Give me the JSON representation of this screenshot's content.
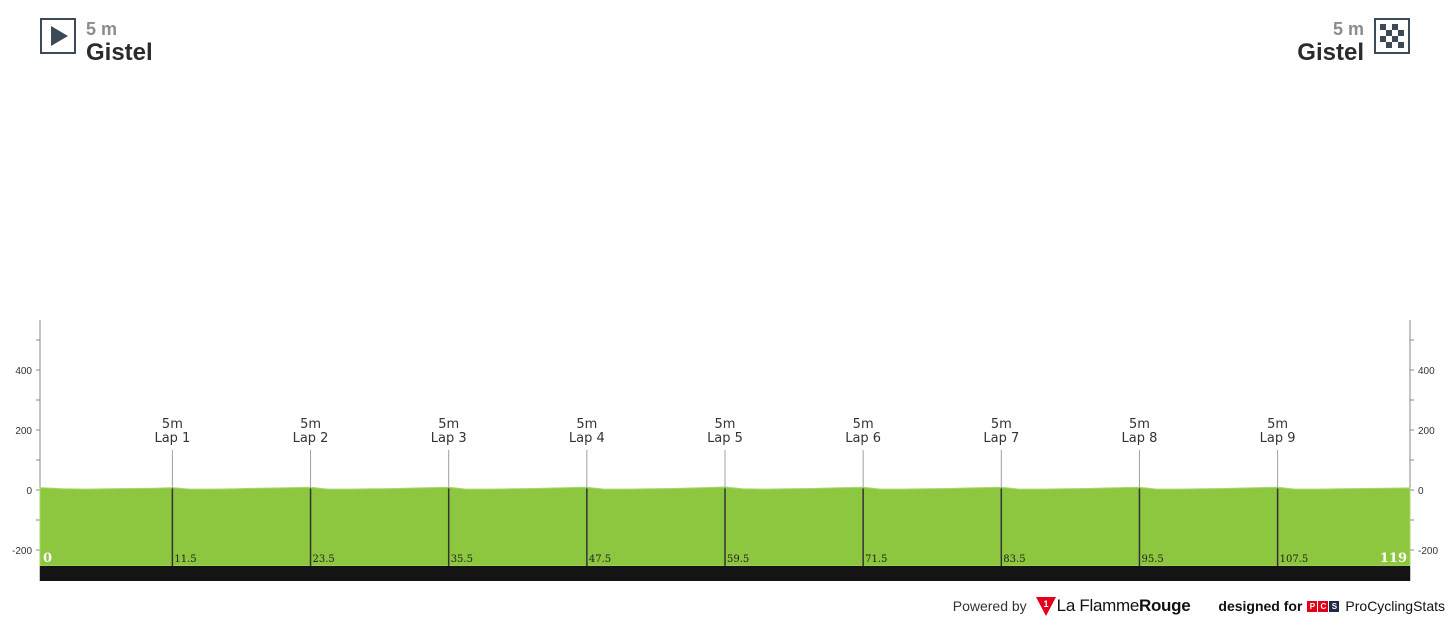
{
  "start": {
    "altitude": "5 m",
    "name": "Gistel",
    "icon": "start-flag-icon"
  },
  "finish": {
    "altitude": "5 m",
    "name": "Gistel",
    "icon": "finish-flag-icon"
  },
  "chart_data": {
    "type": "area",
    "title": "",
    "xlabel": "",
    "ylabel": "",
    "xlim": [
      0,
      119
    ],
    "ylim": [
      -250,
      560
    ],
    "y_ticks": [
      -200,
      0,
      200,
      400
    ],
    "y_tick_labels": [
      "-200",
      "0",
      "200",
      "400"
    ],
    "x_labels": [
      {
        "x": 0,
        "label": "0"
      },
      {
        "x": 11.5,
        "label": "11.5"
      },
      {
        "x": 23.5,
        "label": "23.5"
      },
      {
        "x": 35.5,
        "label": "35.5"
      },
      {
        "x": 47.5,
        "label": "47.5"
      },
      {
        "x": 59.5,
        "label": "59.5"
      },
      {
        "x": 71.5,
        "label": "71.5"
      },
      {
        "x": 83.5,
        "label": "83.5"
      },
      {
        "x": 95.5,
        "label": "95.5"
      },
      {
        "x": 107.5,
        "label": "107.5"
      },
      {
        "x": 119,
        "label": "119"
      }
    ],
    "points": [
      {
        "km": 11.5,
        "altitude": 5,
        "altitude_label": "5m",
        "name": "Lap 1"
      },
      {
        "km": 23.5,
        "altitude": 5,
        "altitude_label": "5m",
        "name": "Lap 2"
      },
      {
        "km": 35.5,
        "altitude": 5,
        "altitude_label": "5m",
        "name": "Lap 3"
      },
      {
        "km": 47.5,
        "altitude": 5,
        "altitude_label": "5m",
        "name": "Lap 4"
      },
      {
        "km": 59.5,
        "altitude": 5,
        "altitude_label": "5m",
        "name": "Lap 5"
      },
      {
        "km": 71.5,
        "altitude": 5,
        "altitude_label": "5m",
        "name": "Lap 6"
      },
      {
        "km": 83.5,
        "altitude": 5,
        "altitude_label": "5m",
        "name": "Lap 7"
      },
      {
        "km": 95.5,
        "altitude": 5,
        "altitude_label": "5m",
        "name": "Lap 8"
      },
      {
        "km": 107.5,
        "altitude": 5,
        "altitude_label": "5m",
        "name": "Lap 9"
      }
    ],
    "profile": {
      "x": [
        0,
        2,
        4,
        6,
        8,
        10,
        11.5,
        13,
        15,
        17,
        19,
        21,
        23.5,
        25,
        27,
        29,
        31,
        33,
        35.5,
        37,
        39,
        41,
        43,
        45,
        47.5,
        49,
        51,
        53,
        55,
        57,
        59.5,
        61,
        63,
        65,
        67,
        69,
        71.5,
        73,
        75,
        77,
        79,
        81,
        83.5,
        85,
        87,
        89,
        91,
        93,
        95.5,
        97,
        99,
        101,
        103,
        105,
        107.5,
        109,
        111,
        113,
        115,
        117,
        119
      ],
      "y": [
        8,
        4,
        3,
        4,
        5,
        6,
        8,
        3,
        3,
        4,
        6,
        7,
        9,
        3,
        3,
        4,
        5,
        7,
        9,
        3,
        3,
        4,
        5,
        7,
        9,
        3,
        3,
        4,
        5,
        7,
        10,
        4,
        3,
        4,
        5,
        7,
        9,
        3,
        3,
        4,
        5,
        7,
        9,
        3,
        3,
        4,
        5,
        7,
        9,
        3,
        3,
        4,
        5,
        7,
        9,
        3,
        3,
        4,
        5,
        6,
        7
      ]
    },
    "colors": {
      "area": "#8dc63f",
      "area_stroke": "#a9d86a",
      "base_bar": "#141414",
      "axis": "#888888",
      "divider": "#333333",
      "label_stub": "#a0a0a0"
    },
    "grid": false,
    "legend": "none"
  },
  "footer": {
    "powered_by": "Powered by",
    "flamme_logo_mark": "1",
    "flamme_brand_1": "La Flamme",
    "flamme_brand_2": "Rouge",
    "designed_for": "designed for",
    "pcs_letters": [
      "P",
      "C",
      "S"
    ],
    "pcs_brand": "ProCyclingStats"
  }
}
